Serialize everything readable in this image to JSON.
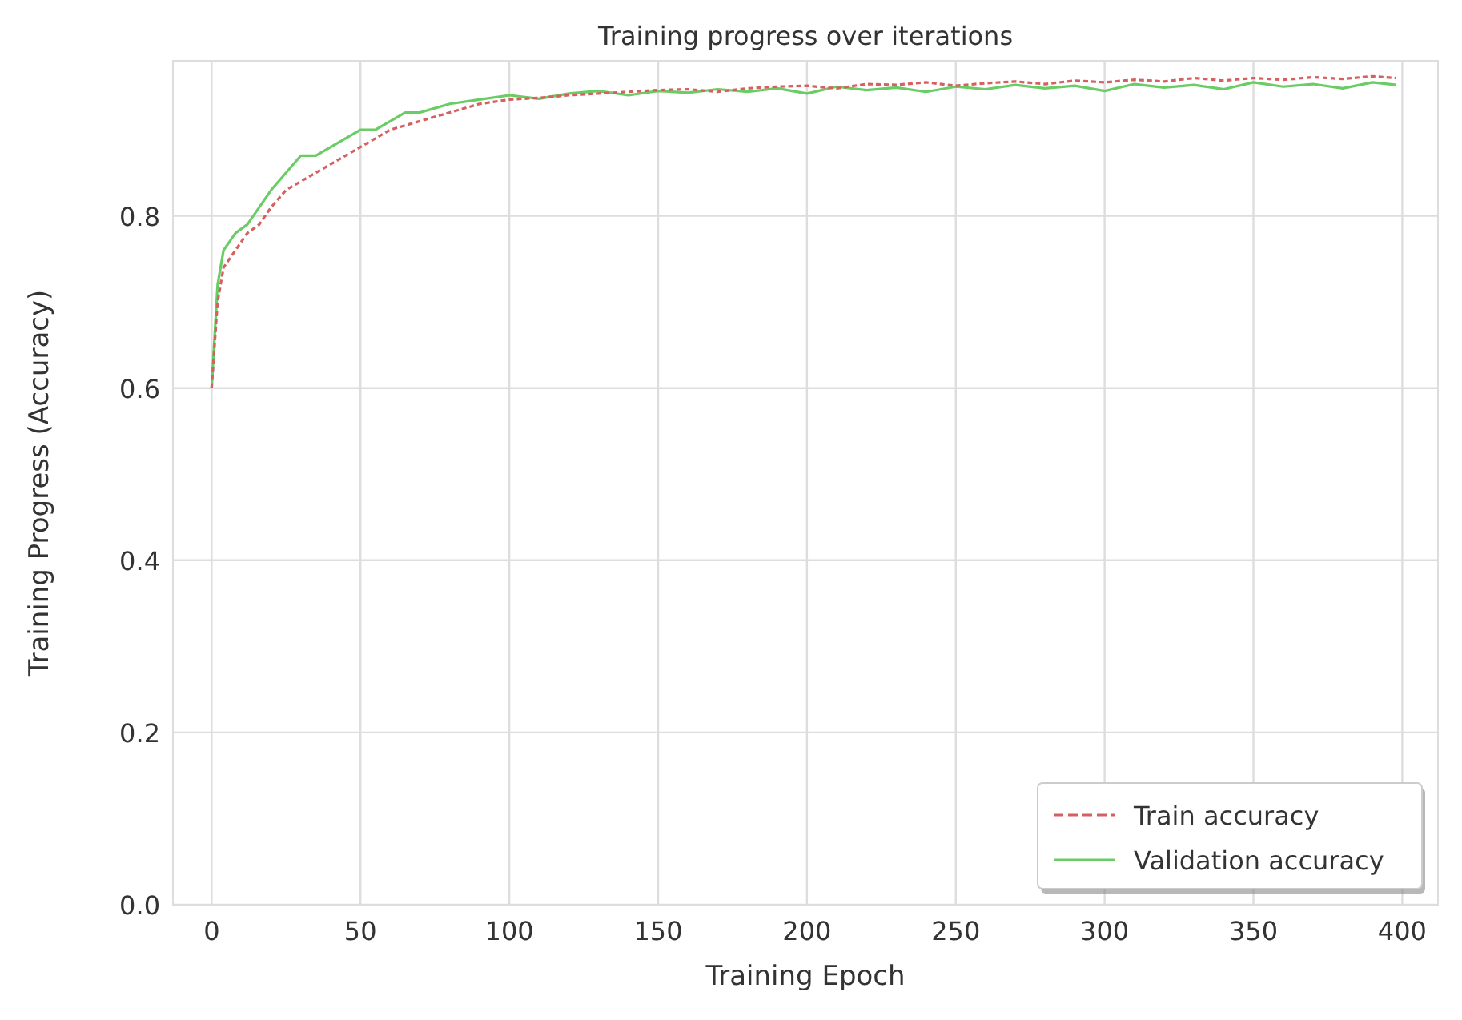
{
  "chart_data": {
    "type": "line",
    "title": "Training progress over iterations",
    "xlabel": "Training Epoch",
    "ylabel": "Training Progress (Accuracy)",
    "xlim": [
      -13,
      412
    ],
    "ylim": [
      0,
      0.98
    ],
    "xticks": [
      0,
      50,
      100,
      150,
      200,
      250,
      300,
      350,
      400
    ],
    "yticks": [
      {
        "value": 0,
        "label": "0.0"
      },
      {
        "value": 0.2,
        "label": "0.2"
      },
      {
        "value": 0.4,
        "label": "0.4"
      },
      {
        "value": 0.6,
        "label": "0.6"
      },
      {
        "value": 0.8,
        "label": "0.8"
      }
    ],
    "grid": true,
    "legend": "bottom right",
    "series": [
      {
        "name": "Train accuracy",
        "color": "#d65f5f",
        "line_style": "dashed",
        "x": [
          0,
          2,
          4,
          6,
          8,
          12,
          16,
          20,
          25,
          30,
          35,
          40,
          45,
          50,
          55,
          60,
          65,
          70,
          75,
          80,
          90,
          100,
          110,
          120,
          130,
          140,
          150,
          160,
          170,
          180,
          190,
          200,
          210,
          220,
          230,
          240,
          250,
          260,
          270,
          280,
          290,
          300,
          310,
          320,
          330,
          340,
          350,
          360,
          370,
          380,
          390,
          398
        ],
        "values": [
          0.6,
          0.7,
          0.74,
          0.75,
          0.76,
          0.78,
          0.79,
          0.81,
          0.83,
          0.84,
          0.85,
          0.86,
          0.87,
          0.88,
          0.89,
          0.9,
          0.905,
          0.91,
          0.915,
          0.92,
          0.93,
          0.935,
          0.937,
          0.94,
          0.942,
          0.944,
          0.946,
          0.947,
          0.944,
          0.948,
          0.95,
          0.951,
          0.948,
          0.953,
          0.952,
          0.955,
          0.951,
          0.954,
          0.956,
          0.953,
          0.957,
          0.955,
          0.958,
          0.956,
          0.96,
          0.957,
          0.96,
          0.958,
          0.961,
          0.959,
          0.962,
          0.96
        ]
      },
      {
        "name": "Validation accuracy",
        "color": "#6acc65",
        "line_style": "solid",
        "x": [
          0,
          2,
          4,
          6,
          8,
          12,
          16,
          20,
          25,
          30,
          35,
          40,
          45,
          50,
          55,
          60,
          65,
          70,
          75,
          80,
          90,
          100,
          110,
          120,
          130,
          140,
          150,
          160,
          170,
          180,
          190,
          200,
          210,
          220,
          230,
          240,
          250,
          260,
          270,
          280,
          290,
          300,
          310,
          320,
          330,
          340,
          350,
          360,
          370,
          380,
          390,
          398
        ],
        "values": [
          0.6,
          0.72,
          0.76,
          0.77,
          0.78,
          0.79,
          0.81,
          0.83,
          0.85,
          0.87,
          0.87,
          0.88,
          0.89,
          0.9,
          0.9,
          0.91,
          0.92,
          0.92,
          0.925,
          0.93,
          0.935,
          0.94,
          0.936,
          0.942,
          0.945,
          0.94,
          0.945,
          0.943,
          0.947,
          0.944,
          0.948,
          0.942,
          0.95,
          0.946,
          0.949,
          0.944,
          0.95,
          0.947,
          0.952,
          0.948,
          0.951,
          0.945,
          0.953,
          0.949,
          0.952,
          0.947,
          0.955,
          0.95,
          0.953,
          0.948,
          0.955,
          0.952
        ]
      }
    ]
  }
}
